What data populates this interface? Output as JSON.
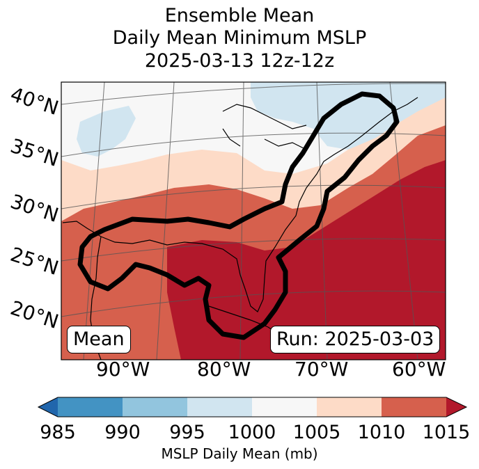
{
  "header": {
    "line1": "Ensemble Mean",
    "line2": "Daily Mean Minimum MSLP",
    "line3": "2025-03-13 12z-12z"
  },
  "map": {
    "lat_labels": [
      "40°N",
      "35°N",
      "30°N",
      "25°N",
      "20°N"
    ],
    "lon_labels": [
      "90°W",
      "80°W",
      "70°W",
      "60°W"
    ],
    "mean_box": "Mean",
    "run_box": "Run: 2025-03-03"
  },
  "colorbar": {
    "ticks": [
      "985",
      "990",
      "995",
      "1000",
      "1005",
      "1010",
      "1015"
    ],
    "title": "MSLP Daily Mean (mb)",
    "colors": {
      "under": "#2166ac",
      "985_990": "#4393c3",
      "990_995": "#92c5de",
      "995_1000": "#d1e5f0",
      "1000_1005": "#f7f7f7",
      "1005_1010": "#fddbc7",
      "1010_1015": "#d6604d",
      "over": "#b2182b"
    }
  }
}
